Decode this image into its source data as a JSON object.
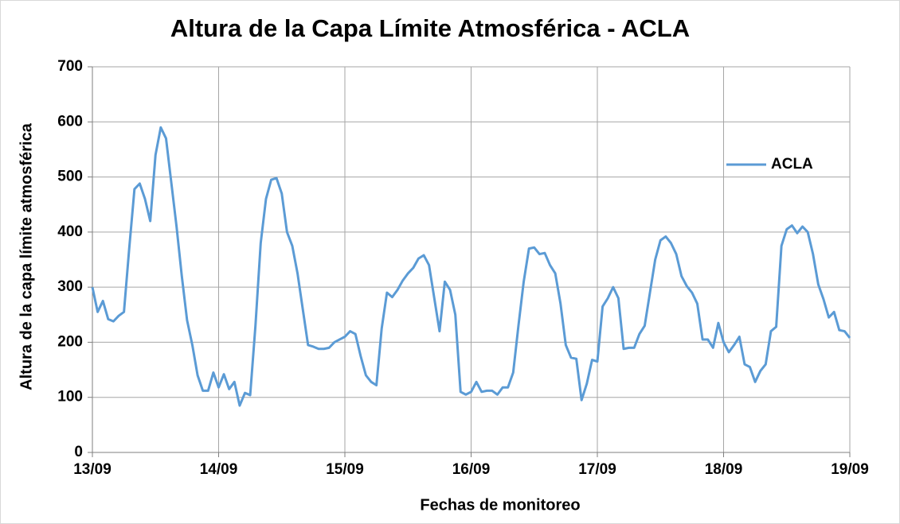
{
  "chart_data": {
    "type": "line",
    "title": "Altura de la Capa Límite Atmosférica - ACLA",
    "x_label": "Fechas de monitoreo",
    "y_label": "Altura de la capa límite atmosférica",
    "x": [
      0,
      1,
      2,
      3,
      4,
      5,
      6,
      7,
      8,
      9,
      10,
      11,
      12,
      13,
      14,
      15,
      16,
      17,
      18,
      19,
      20,
      21,
      22,
      23,
      24,
      25,
      26,
      27,
      28,
      29,
      30,
      31,
      32,
      33,
      34,
      35,
      36,
      37,
      38,
      39,
      40,
      41,
      42,
      43,
      44,
      45,
      46,
      47,
      48,
      49,
      50,
      51,
      52,
      53,
      54,
      55,
      56,
      57,
      58,
      59,
      60,
      61,
      62,
      63,
      64,
      65,
      66,
      67,
      68,
      69,
      70,
      71,
      72,
      73,
      74,
      75,
      76,
      77,
      78,
      79,
      80,
      81,
      82,
      83,
      84,
      85,
      86,
      87,
      88,
      89,
      90,
      91,
      92,
      93,
      94,
      95,
      96,
      97,
      98,
      99,
      100,
      101,
      102,
      103,
      104,
      105,
      106,
      107,
      108,
      109,
      110,
      111,
      112,
      113,
      114,
      115,
      116,
      117,
      118,
      119,
      120,
      121,
      122,
      123,
      124,
      125,
      126,
      127,
      128,
      129,
      130,
      131,
      132,
      133,
      134,
      135,
      136,
      137,
      138,
      139,
      140,
      141,
      142,
      143,
      144
    ],
    "series": [
      {
        "name": "ACLA",
        "color": "#5b9bd5",
        "values": [
          300,
          255,
          275,
          242,
          238,
          248,
          255,
          370,
          478,
          488,
          460,
          420,
          540,
          590,
          570,
          490,
          410,
          320,
          240,
          195,
          140,
          112,
          112,
          145,
          118,
          142,
          115,
          128,
          85,
          108,
          104,
          230,
          380,
          460,
          495,
          498,
          470,
          400,
          375,
          325,
          260,
          195,
          192,
          188,
          188,
          190,
          200,
          205,
          210,
          220,
          215,
          175,
          140,
          128,
          122,
          225,
          290,
          282,
          295,
          312,
          325,
          335,
          352,
          358,
          340,
          280,
          220,
          310,
          295,
          250,
          110,
          105,
          110,
          128,
          110,
          112,
          112,
          105,
          118,
          118,
          145,
          230,
          310,
          370,
          372,
          360,
          362,
          340,
          325,
          270,
          195,
          172,
          170,
          95,
          125,
          168,
          165,
          265,
          280,
          300,
          280,
          188,
          190,
          190,
          215,
          230,
          290,
          350,
          385,
          392,
          380,
          360,
          320,
          302,
          290,
          270,
          205,
          205,
          190,
          235,
          200,
          182,
          195,
          210,
          160,
          155,
          128,
          148,
          160,
          220,
          228,
          375,
          405,
          412,
          398,
          410,
          400,
          360,
          305,
          278,
          245,
          255,
          222,
          220,
          208
        ]
      }
    ],
    "xlim": [
      0,
      144
    ],
    "xticks": [
      {
        "value": 0,
        "label": "13/09"
      },
      {
        "value": 24,
        "label": "14/09"
      },
      {
        "value": 48,
        "label": "15/09"
      },
      {
        "value": 72,
        "label": "16/09"
      },
      {
        "value": 96,
        "label": "17/09"
      },
      {
        "value": 120,
        "label": "18/09"
      },
      {
        "value": 144,
        "label": "19/09"
      }
    ],
    "ylim": [
      0,
      700
    ],
    "yticks": [
      0,
      100,
      200,
      300,
      400,
      500,
      600,
      700
    ],
    "grid": true,
    "legend": "right"
  }
}
